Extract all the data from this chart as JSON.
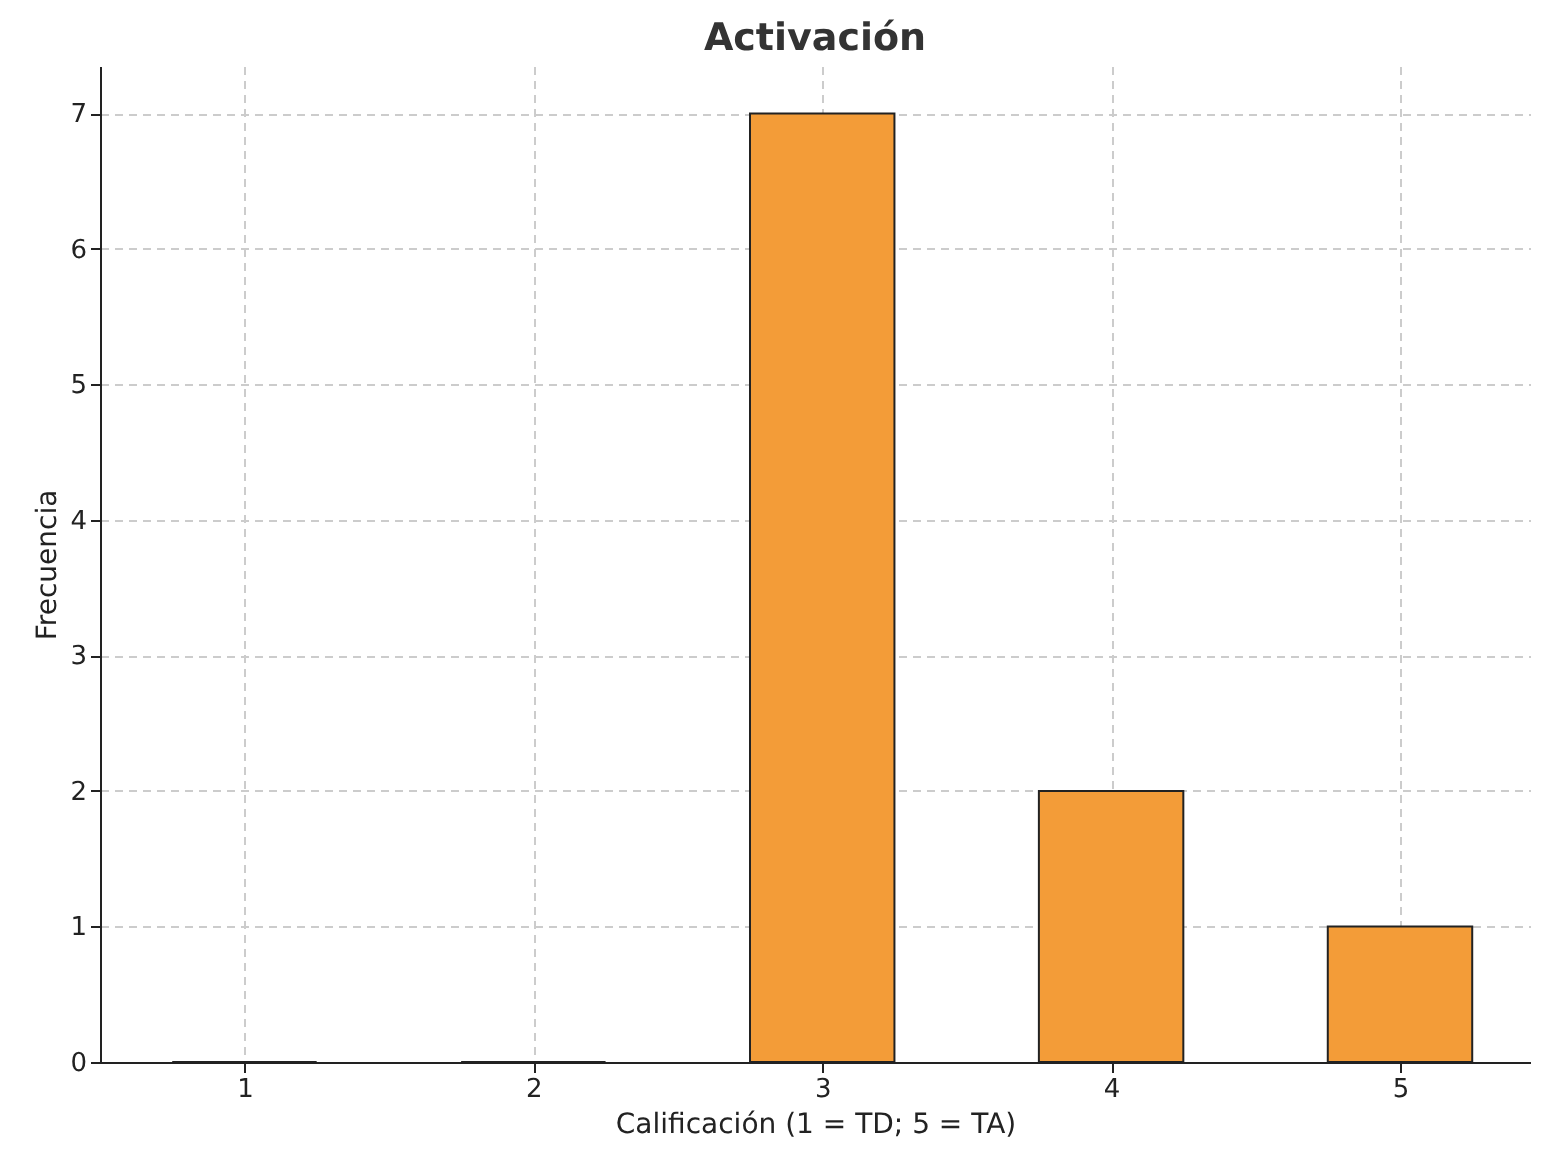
{
  "chart_data": {
    "type": "bar",
    "title": "Activación",
    "xlabel": "Calificación (1 = TD; 5 = TA)",
    "ylabel": "Frecuencia",
    "x": [
      1,
      2,
      3,
      4,
      5
    ],
    "values": [
      0,
      0,
      7,
      2,
      1
    ],
    "color": "#f39c38",
    "xlim": [
      0.5,
      5.45
    ],
    "xticks": [
      1,
      2,
      3,
      4,
      5
    ],
    "ylim": [
      0,
      7.35
    ],
    "yticks": [
      0,
      1,
      2,
      3,
      4,
      5,
      6,
      7
    ],
    "grid": true,
    "line_style": "dashed"
  }
}
